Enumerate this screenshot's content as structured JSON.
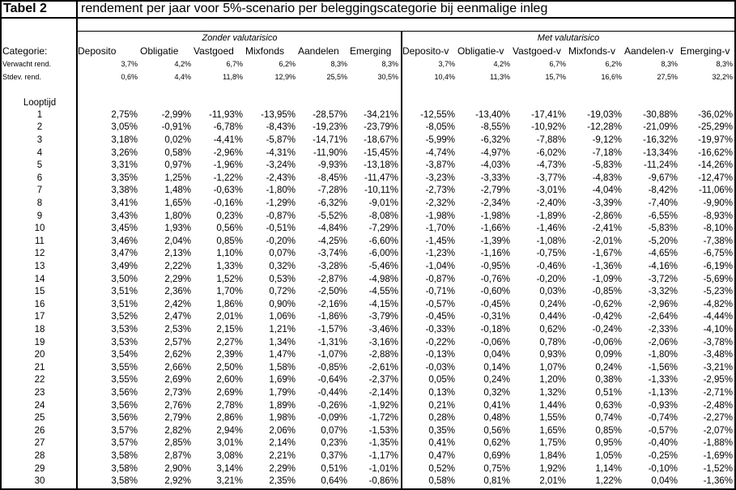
{
  "table": {
    "number": "Tabel 2",
    "title": "rendement per jaar voor 5%-scenario per beleggingscategorie bij eenmalige inleg",
    "groups": [
      "Zonder valutarisico",
      "Met valutarisico"
    ],
    "category_label": "Categorie:",
    "categories": [
      "Deposito",
      "Obligatie",
      "Vastgoed",
      "Mixfonds",
      "Aandelen",
      "Emerging",
      "Deposito-v",
      "Obligatie-v",
      "Vastgoed-v",
      "Mixfonds-v",
      "Aandelen-v",
      "Emerging-v"
    ],
    "expected_label": "Verwacht rend.",
    "expected": [
      "3,7%",
      "4,2%",
      "6,7%",
      "6,2%",
      "8,3%",
      "8,3%",
      "3,7%",
      "4,2%",
      "6,7%",
      "6,2%",
      "8,3%",
      "8,3%"
    ],
    "stdev_label": "Stdev. rend.",
    "stdev": [
      "0,6%",
      "4,4%",
      "11,8%",
      "12,9%",
      "25,5%",
      "30,5%",
      "10,4%",
      "11,3%",
      "15,7%",
      "16,6%",
      "27,5%",
      "32,2%"
    ],
    "term_label": "Looptijd",
    "rows": [
      {
        "year": "1",
        "values": [
          "2,75%",
          "-2,99%",
          "-11,93%",
          "-13,95%",
          "-28,57%",
          "-34,21%",
          "-12,55%",
          "-13,40%",
          "-17,41%",
          "-19,03%",
          "-30,88%",
          "-36,02%"
        ]
      },
      {
        "year": "2",
        "values": [
          "3,05%",
          "-0,91%",
          "-6,78%",
          "-8,43%",
          "-19,23%",
          "-23,79%",
          "-8,05%",
          "-8,55%",
          "-10,92%",
          "-12,28%",
          "-21,09%",
          "-25,29%"
        ]
      },
      {
        "year": "3",
        "values": [
          "3,18%",
          "0,02%",
          "-4,41%",
          "-5,87%",
          "-14,71%",
          "-18,67%",
          "-5,99%",
          "-6,32%",
          "-7,88%",
          "-9,12%",
          "-16,32%",
          "-19,97%"
        ]
      },
      {
        "year": "4",
        "values": [
          "3,26%",
          "0,58%",
          "-2,96%",
          "-4,31%",
          "-11,90%",
          "-15,45%",
          "-4,74%",
          "-4,97%",
          "-6,02%",
          "-7,18%",
          "-13,34%",
          "-16,62%"
        ]
      },
      {
        "year": "5",
        "values": [
          "3,31%",
          "0,97%",
          "-1,96%",
          "-3,24%",
          "-9,93%",
          "-13,18%",
          "-3,87%",
          "-4,03%",
          "-4,73%",
          "-5,83%",
          "-11,24%",
          "-14,26%"
        ]
      },
      {
        "year": "6",
        "values": [
          "3,35%",
          "1,25%",
          "-1,22%",
          "-2,43%",
          "-8,45%",
          "-11,47%",
          "-3,23%",
          "-3,33%",
          "-3,77%",
          "-4,83%",
          "-9,67%",
          "-12,47%"
        ]
      },
      {
        "year": "7",
        "values": [
          "3,38%",
          "1,48%",
          "-0,63%",
          "-1,80%",
          "-7,28%",
          "-10,11%",
          "-2,73%",
          "-2,79%",
          "-3,01%",
          "-4,04%",
          "-8,42%",
          "-11,06%"
        ]
      },
      {
        "year": "8",
        "values": [
          "3,41%",
          "1,65%",
          "-0,16%",
          "-1,29%",
          "-6,32%",
          "-9,01%",
          "-2,32%",
          "-2,34%",
          "-2,40%",
          "-3,39%",
          "-7,40%",
          "-9,90%"
        ]
      },
      {
        "year": "9",
        "values": [
          "3,43%",
          "1,80%",
          "0,23%",
          "-0,87%",
          "-5,52%",
          "-8,08%",
          "-1,98%",
          "-1,98%",
          "-1,89%",
          "-2,86%",
          "-6,55%",
          "-8,93%"
        ]
      },
      {
        "year": "10",
        "values": [
          "3,45%",
          "1,93%",
          "0,56%",
          "-0,51%",
          "-4,84%",
          "-7,29%",
          "-1,70%",
          "-1,66%",
          "-1,46%",
          "-2,41%",
          "-5,83%",
          "-8,10%"
        ]
      },
      {
        "year": "11",
        "values": [
          "3,46%",
          "2,04%",
          "0,85%",
          "-0,20%",
          "-4,25%",
          "-6,60%",
          "-1,45%",
          "-1,39%",
          "-1,08%",
          "-2,01%",
          "-5,20%",
          "-7,38%"
        ]
      },
      {
        "year": "12",
        "values": [
          "3,47%",
          "2,13%",
          "1,10%",
          "0,07%",
          "-3,74%",
          "-6,00%",
          "-1,23%",
          "-1,16%",
          "-0,75%",
          "-1,67%",
          "-4,65%",
          "-6,75%"
        ]
      },
      {
        "year": "13",
        "values": [
          "3,49%",
          "2,22%",
          "1,33%",
          "0,32%",
          "-3,28%",
          "-5,46%",
          "-1,04%",
          "-0,95%",
          "-0,46%",
          "-1,36%",
          "-4,16%",
          "-6,19%"
        ]
      },
      {
        "year": "14",
        "values": [
          "3,50%",
          "2,29%",
          "1,52%",
          "0,53%",
          "-2,87%",
          "-4,98%",
          "-0,87%",
          "-0,76%",
          "-0,20%",
          "-1,09%",
          "-3,72%",
          "-5,69%"
        ]
      },
      {
        "year": "15",
        "values": [
          "3,51%",
          "2,36%",
          "1,70%",
          "0,72%",
          "-2,50%",
          "-4,55%",
          "-0,71%",
          "-0,60%",
          "0,03%",
          "-0,85%",
          "-3,32%",
          "-5,23%"
        ]
      },
      {
        "year": "16",
        "values": [
          "3,51%",
          "2,42%",
          "1,86%",
          "0,90%",
          "-2,16%",
          "-4,15%",
          "-0,57%",
          "-0,45%",
          "0,24%",
          "-0,62%",
          "-2,96%",
          "-4,82%"
        ]
      },
      {
        "year": "17",
        "values": [
          "3,52%",
          "2,47%",
          "2,01%",
          "1,06%",
          "-1,86%",
          "-3,79%",
          "-0,45%",
          "-0,31%",
          "0,44%",
          "-0,42%",
          "-2,64%",
          "-4,44%"
        ]
      },
      {
        "year": "18",
        "values": [
          "3,53%",
          "2,53%",
          "2,15%",
          "1,21%",
          "-1,57%",
          "-3,46%",
          "-0,33%",
          "-0,18%",
          "0,62%",
          "-0,24%",
          "-2,33%",
          "-4,10%"
        ]
      },
      {
        "year": "19",
        "values": [
          "3,53%",
          "2,57%",
          "2,27%",
          "1,34%",
          "-1,31%",
          "-3,16%",
          "-0,22%",
          "-0,06%",
          "0,78%",
          "-0,06%",
          "-2,06%",
          "-3,78%"
        ]
      },
      {
        "year": "20",
        "values": [
          "3,54%",
          "2,62%",
          "2,39%",
          "1,47%",
          "-1,07%",
          "-2,88%",
          "-0,13%",
          "0,04%",
          "0,93%",
          "0,09%",
          "-1,80%",
          "-3,48%"
        ]
      },
      {
        "year": "21",
        "values": [
          "3,55%",
          "2,66%",
          "2,50%",
          "1,58%",
          "-0,85%",
          "-2,61%",
          "-0,03%",
          "0,14%",
          "1,07%",
          "0,24%",
          "-1,56%",
          "-3,21%"
        ]
      },
      {
        "year": "22",
        "values": [
          "3,55%",
          "2,69%",
          "2,60%",
          "1,69%",
          "-0,64%",
          "-2,37%",
          "0,05%",
          "0,24%",
          "1,20%",
          "0,38%",
          "-1,33%",
          "-2,95%"
        ]
      },
      {
        "year": "23",
        "values": [
          "3,56%",
          "2,73%",
          "2,69%",
          "1,79%",
          "-0,44%",
          "-2,14%",
          "0,13%",
          "0,32%",
          "1,32%",
          "0,51%",
          "-1,13%",
          "-2,71%"
        ]
      },
      {
        "year": "24",
        "values": [
          "3,56%",
          "2,76%",
          "2,78%",
          "1,89%",
          "-0,26%",
          "-1,92%",
          "0,21%",
          "0,41%",
          "1,44%",
          "0,63%",
          "-0,93%",
          "-2,48%"
        ]
      },
      {
        "year": "25",
        "values": [
          "3,56%",
          "2,79%",
          "2,86%",
          "1,98%",
          "-0,09%",
          "-1,72%",
          "0,28%",
          "0,48%",
          "1,55%",
          "0,74%",
          "-0,74%",
          "-2,27%"
        ]
      },
      {
        "year": "26",
        "values": [
          "3,57%",
          "2,82%",
          "2,94%",
          "2,06%",
          "0,07%",
          "-1,53%",
          "0,35%",
          "0,56%",
          "1,65%",
          "0,85%",
          "-0,57%",
          "-2,07%"
        ]
      },
      {
        "year": "27",
        "values": [
          "3,57%",
          "2,85%",
          "3,01%",
          "2,14%",
          "0,23%",
          "-1,35%",
          "0,41%",
          "0,62%",
          "1,75%",
          "0,95%",
          "-0,40%",
          "-1,88%"
        ]
      },
      {
        "year": "28",
        "values": [
          "3,58%",
          "2,87%",
          "3,08%",
          "2,21%",
          "0,37%",
          "-1,17%",
          "0,47%",
          "0,69%",
          "1,84%",
          "1,05%",
          "-0,25%",
          "-1,69%"
        ]
      },
      {
        "year": "29",
        "values": [
          "3,58%",
          "2,90%",
          "3,14%",
          "2,29%",
          "0,51%",
          "-1,01%",
          "0,52%",
          "0,75%",
          "1,92%",
          "1,14%",
          "-0,10%",
          "-1,52%"
        ]
      },
      {
        "year": "30",
        "values": [
          "3,58%",
          "2,92%",
          "3,21%",
          "2,35%",
          "0,64%",
          "-0,86%",
          "0,58%",
          "0,81%",
          "2,01%",
          "1,22%",
          "0,04%",
          "-1,36%"
        ]
      }
    ]
  }
}
